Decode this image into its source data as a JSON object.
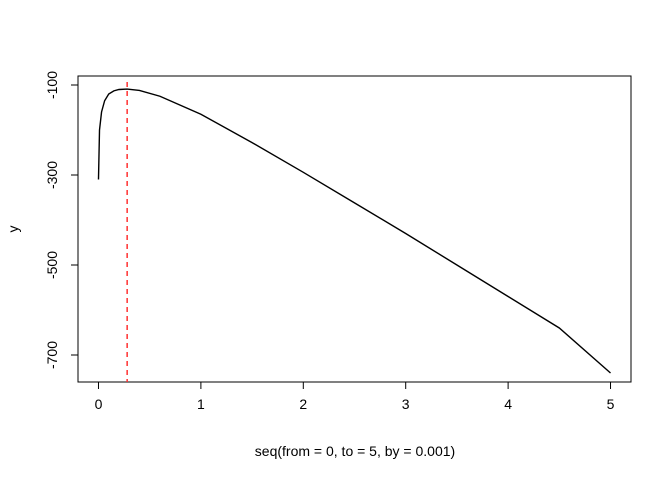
{
  "chart_data": {
    "type": "line",
    "title": "",
    "xlabel": "seq(from = 0, to = 5, by = 0.001)",
    "ylabel": "y",
    "xlim": [
      -0.2,
      5.2
    ],
    "ylim": [
      -760,
      -80
    ],
    "xticks": [
      0,
      1,
      2,
      3,
      4,
      5
    ],
    "xtick_labels": [
      "0",
      "1",
      "2",
      "3",
      "4",
      "5"
    ],
    "yticks": [
      -100,
      -300,
      -500,
      -700
    ],
    "ytick_labels": [
      "-100",
      "-300",
      "-500",
      "-700"
    ],
    "grid": false,
    "legend": "none",
    "series": [
      {
        "color": "#000000",
        "x": [
          0.0,
          0.01,
          0.03,
          0.06,
          0.1,
          0.15,
          0.2,
          0.28,
          0.4,
          0.6,
          0.8,
          1.0,
          1.5,
          2.0,
          2.5,
          3.0,
          3.5,
          4.0,
          4.5,
          5.0
        ],
        "y": [
          -310,
          -200,
          -160,
          -135,
          -120,
          -113,
          -110,
          -109,
          -112,
          -125,
          -145,
          -165,
          -228,
          -294,
          -362,
          -430,
          -500,
          -570,
          -640,
          -740
        ]
      }
    ],
    "vline": {
      "x": 0.28,
      "color": "#ff3030",
      "style": "dashed"
    }
  }
}
